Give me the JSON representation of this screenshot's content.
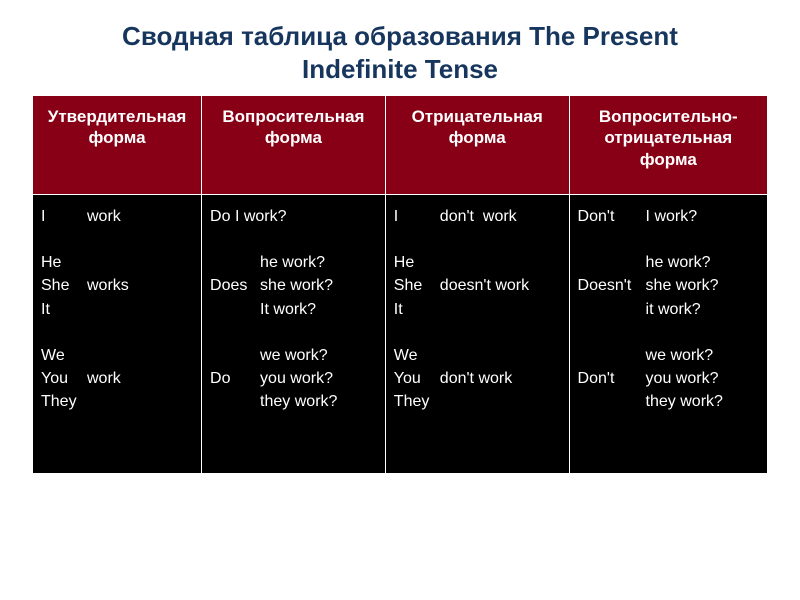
{
  "title_line1": "Сводная таблица образования The Present",
  "title_line2": "Indefinite Tense",
  "headers": {
    "affirmative": "Утвердительная форма",
    "interrogative": "Вопросительная форма",
    "negative": "Отрицательная форма",
    "neg_interrogative": "Вопросительно-отрицательная форма"
  },
  "colors": {
    "header_bg": "#880015",
    "header_fg": "#ffffff",
    "cell_bg": "#000000",
    "cell_fg": "#ffffff",
    "title_fg": "#17365d",
    "border": "#ffffff"
  },
  "pr": {
    "i": "I",
    "he": "He",
    "she": "She",
    "it": "It",
    "we": "We",
    "you": "You",
    "they": "They"
  },
  "aux": {
    "do_q": "Do",
    "does_q": "Does",
    "dont_q": "Don't",
    "doesnt_q": "Doesn't",
    "dont": "don't",
    "doesnt": "doesn't"
  },
  "verb": {
    "work": "work",
    "works": "works"
  },
  "q": {
    "i_work": "Do I work?",
    "he": "he work?",
    "she": "she work?",
    "it": "It work?",
    "we": "we work?",
    "you": "you work?",
    "they": "they work?"
  },
  "nq": {
    "i_work": "I work?",
    "he": "he work?",
    "she": "she work?",
    "it": "it work?",
    "we": "we work?",
    "you": "you work?",
    "they": "they work?"
  }
}
